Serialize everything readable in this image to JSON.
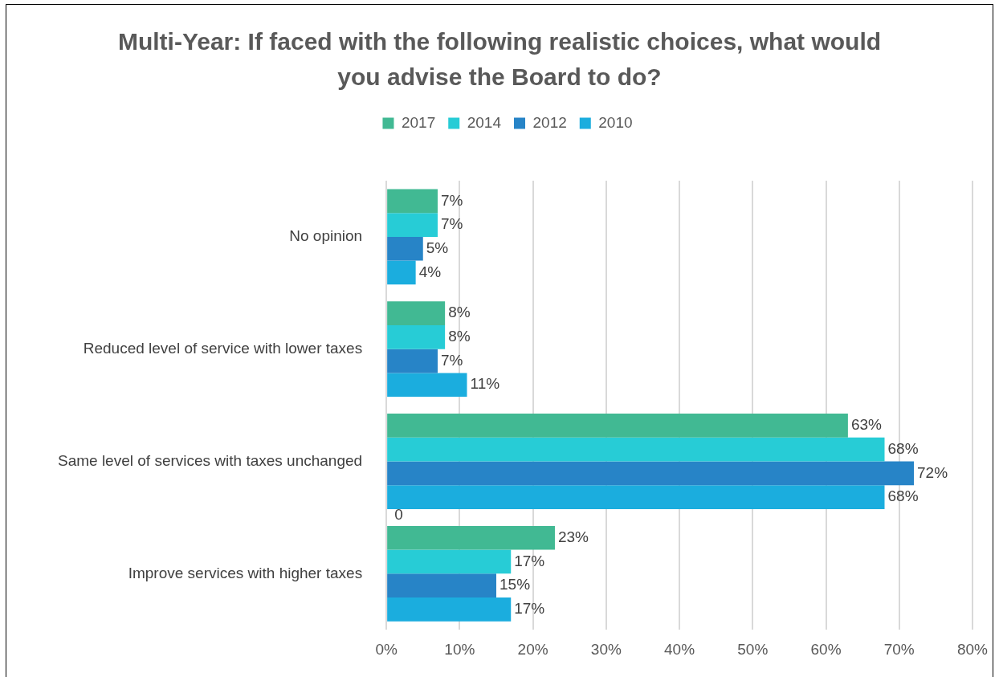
{
  "chart_data": {
    "type": "bar",
    "orientation": "horizontal",
    "title": "Multi-Year: If faced with the following realistic choices, what would you advise the Board to do?",
    "categories": [
      "No opinion",
      "Reduced level of service with lower taxes",
      "Same level of services with taxes unchanged",
      "Improve services with higher taxes"
    ],
    "series": [
      {
        "name": "2017",
        "color": "#41b993",
        "values": [
          7,
          8,
          63,
          23
        ],
        "value_labels": [
          "7%",
          "8%",
          "63%",
          "23%"
        ]
      },
      {
        "name": "2014",
        "color": "#27ccd6",
        "values": [
          7,
          8,
          68,
          17
        ],
        "value_labels": [
          "7%",
          "8%",
          "68%",
          "17%"
        ]
      },
      {
        "name": "2012",
        "color": "#2784c7",
        "values": [
          5,
          7,
          72,
          15
        ],
        "value_labels": [
          "5%",
          "7%",
          "72%",
          "15%"
        ]
      },
      {
        "name": "2010",
        "color": "#1badde",
        "values": [
          4,
          11,
          68,
          17
        ],
        "value_labels": [
          "4%",
          "11%",
          "68%",
          "17%"
        ]
      }
    ],
    "xlim": [
      0,
      80
    ],
    "xticks": [
      {
        "value": 0,
        "label": "0%"
      },
      {
        "value": 10,
        "label": "10%"
      },
      {
        "value": 20,
        "label": "20%"
      },
      {
        "value": 30,
        "label": "30%"
      },
      {
        "value": 40,
        "label": "40%"
      },
      {
        "value": 50,
        "label": "50%"
      },
      {
        "value": 60,
        "label": "60%"
      },
      {
        "value": 70,
        "label": "70%"
      },
      {
        "value": 80,
        "label": "80%"
      }
    ],
    "grid": "x",
    "legend": "top",
    "annotations": [
      "0"
    ]
  }
}
